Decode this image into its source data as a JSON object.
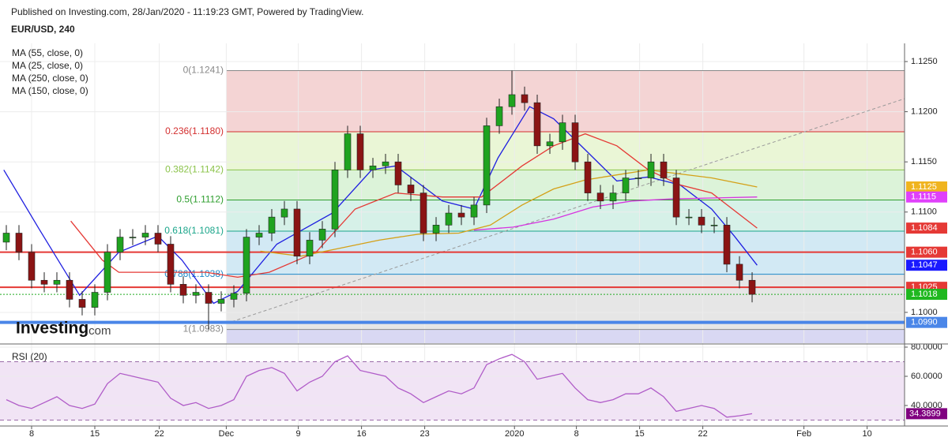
{
  "header": {
    "published": "Published on Investing.com, 28/Jan/2020 - 11:19:23 GMT, Powered by TradingView.",
    "symbol": "EUR/USD, 240",
    "indicators": [
      "MA (55, close, 0)",
      "MA (25, close, 0)",
      "MA (250, close, 0)",
      "MA (150, close, 0)"
    ]
  },
  "logo": {
    "brand": "Investing",
    "suffix": ".com"
  },
  "chart_data": [
    {
      "type": "candlestick",
      "x": [
        0.5,
        1.5,
        2.5,
        3.5,
        4.5,
        5.5,
        6.5,
        7.5,
        8.5,
        9.5,
        10.5,
        11.5,
        12.5,
        13.5,
        14.5,
        15.5,
        16.5,
        17.5,
        18.5,
        19.5,
        20.5,
        21.5,
        22.5,
        23.5,
        24.5,
        25.5,
        26.5,
        27.5,
        28.5,
        29.5,
        30.5,
        31.5,
        32.5,
        33.5,
        34.5,
        35.5,
        36.5,
        37.5,
        38.5,
        39.5,
        40.5,
        41.5,
        42.5,
        43.5,
        44.5,
        45.5,
        46.5,
        47.5,
        48.5,
        49.5,
        50.5,
        51.5,
        52.5,
        53.5,
        54.5,
        55.5,
        56.5,
        57.5,
        58.5,
        59.5
      ],
      "open": [
        1.107,
        1.1079,
        1.106,
        1.1032,
        1.1028,
        1.1032,
        1.1013,
        1.1005,
        1.102,
        1.106,
        1.1075,
        1.1075,
        1.1079,
        1.1068,
        1.1028,
        1.1017,
        1.102,
        1.1009,
        1.1013,
        1.1019,
        1.1075,
        1.1079,
        1.1095,
        1.1103,
        1.1056,
        1.1072,
        1.1083,
        1.1142,
        1.1178,
        1.1142,
        1.1146,
        1.115,
        1.1127,
        1.1119,
        1.1079,
        1.1087,
        1.1099,
        1.1095,
        1.1107,
        1.1186,
        1.1205,
        1.1217,
        1.1209,
        1.1166,
        1.117,
        1.1189,
        1.115,
        1.1119,
        1.1111,
        1.1119,
        1.1134,
        1.1134,
        1.115,
        1.1134,
        1.1095,
        1.1095,
        1.1087,
        1.1087,
        1.1048,
        1.1032
      ],
      "high": [
        1.1087,
        1.1087,
        1.1068,
        1.104,
        1.104,
        1.104,
        1.1021,
        1.1028,
        1.1068,
        1.1083,
        1.1083,
        1.1087,
        1.1087,
        1.1076,
        1.1036,
        1.1028,
        1.1028,
        1.1021,
        1.1027,
        1.1083,
        1.1087,
        1.1103,
        1.1111,
        1.1111,
        1.108,
        1.1091,
        1.115,
        1.1186,
        1.1186,
        1.1154,
        1.1158,
        1.1158,
        1.1135,
        1.1127,
        1.1095,
        1.1107,
        1.1107,
        1.1115,
        1.1194,
        1.1213,
        1.1241,
        1.1225,
        1.1217,
        1.1178,
        1.1197,
        1.1197,
        1.1158,
        1.1127,
        1.1127,
        1.1142,
        1.1142,
        1.1158,
        1.1158,
        1.1142,
        1.1103,
        1.1103,
        1.1095,
        1.1095,
        1.1056,
        1.104
      ],
      "low": [
        1.1062,
        1.1052,
        1.1024,
        1.102,
        1.102,
        1.1005,
        1.0997,
        1.0997,
        1.1012,
        1.1052,
        1.1067,
        1.1067,
        1.106,
        1.102,
        1.1009,
        1.1009,
        1.0983,
        1.1001,
        1.1005,
        1.1011,
        1.1067,
        1.1071,
        1.1087,
        1.1048,
        1.1048,
        1.1064,
        1.1075,
        1.1134,
        1.1134,
        1.1134,
        1.1138,
        1.1119,
        1.1111,
        1.1071,
        1.1071,
        1.1079,
        1.1087,
        1.1087,
        1.1099,
        1.1178,
        1.1197,
        1.1201,
        1.1158,
        1.1158,
        1.1162,
        1.1142,
        1.1111,
        1.1103,
        1.1103,
        1.1111,
        1.1126,
        1.1126,
        1.1126,
        1.1087,
        1.1087,
        1.1079,
        1.1079,
        1.104,
        1.1024,
        1.101
      ],
      "close": [
        1.1079,
        1.106,
        1.1032,
        1.1028,
        1.1032,
        1.1013,
        1.1005,
        1.102,
        1.106,
        1.1075,
        1.1075,
        1.1079,
        1.1068,
        1.1028,
        1.1017,
        1.102,
        1.1009,
        1.1013,
        1.1019,
        1.1075,
        1.1079,
        1.1095,
        1.1103,
        1.1056,
        1.1072,
        1.1083,
        1.1142,
        1.1178,
        1.1142,
        1.1146,
        1.115,
        1.1127,
        1.1119,
        1.1079,
        1.1087,
        1.1099,
        1.1095,
        1.1107,
        1.1186,
        1.1205,
        1.1217,
        1.1209,
        1.1166,
        1.117,
        1.1189,
        1.115,
        1.1119,
        1.1111,
        1.1119,
        1.1134,
        1.1134,
        1.115,
        1.1134,
        1.1095,
        1.1095,
        1.1087,
        1.1087,
        1.1048,
        1.1032,
        1.1018
      ],
      "up_color": "#1fa31f",
      "down_color": "#8b1414",
      "series": [
        {
          "name": "MA (55, close, 0)",
          "color": "#1f1fe0",
          "x": [
            0.3,
            3.1,
            6.3,
            9.4,
            12.5,
            14.4,
            16.9,
            18.8,
            21.9,
            26.3,
            29.4,
            31.3,
            35,
            37.5,
            39.4,
            41.9,
            43.8,
            46.3,
            48.8,
            51.3,
            53.8,
            56.3,
            58.1,
            59.9
          ],
          "values": [
            1.1142,
            1.1083,
            1.1017,
            1.106,
            1.1076,
            1.1052,
            1.1009,
            1.1021,
            1.1068,
            1.1099,
            1.1142,
            1.1146,
            1.1111,
            1.1103,
            1.1154,
            1.1205,
            1.1193,
            1.1162,
            1.1131,
            1.1135,
            1.1127,
            1.1103,
            1.1076,
            1.1047
          ]
        },
        {
          "name": "MA (25, close, 0)",
          "color": "#e53935",
          "x": [
            5.6,
            8.1,
            9.4,
            12.5,
            16.3,
            18.8,
            21.3,
            25,
            28.1,
            31.3,
            35,
            38.1,
            41.3,
            43.8,
            46.3,
            48.8,
            51.3,
            53.8,
            56.3,
            59.9
          ],
          "values": [
            1.1091,
            1.1052,
            1.104,
            1.104,
            1.104,
            1.1035,
            1.104,
            1.106,
            1.1103,
            1.1119,
            1.1115,
            1.1115,
            1.1146,
            1.1166,
            1.1178,
            1.1166,
            1.1142,
            1.1127,
            1.1119,
            1.1084
          ]
        },
        {
          "name": "MA (250, close, 0)",
          "color": "#d4a017",
          "x": [
            20.6,
            23.8,
            26.9,
            30,
            33.1,
            36.3,
            38.8,
            41.3,
            43.8,
            46.3,
            48.8,
            51.3,
            53.8,
            56.3,
            59.9
          ],
          "values": [
            1.1061,
            1.1056,
            1.1064,
            1.1072,
            1.1078,
            1.1079,
            1.1087,
            1.1107,
            1.1123,
            1.1132,
            1.1137,
            1.1142,
            1.1138,
            1.1134,
            1.1125
          ]
        },
        {
          "name": "MA (150, close, 0)",
          "color": "#d633e0",
          "x": [
            37.5,
            40.6,
            43.8,
            46.9,
            50,
            53.1,
            56.3,
            59.9
          ],
          "values": [
            1.1082,
            1.1085,
            1.1093,
            1.1105,
            1.1111,
            1.1113,
            1.1114,
            1.1115
          ]
        }
      ],
      "fib_levels": [
        {
          "label": "0(1.1241)",
          "value": 1.1241,
          "color": "#888888",
          "band": "#f4d4d4"
        },
        {
          "label": "0.236(1.1180)",
          "value": 1.118,
          "color": "#d32f2f",
          "band": "#eaf6d6"
        },
        {
          "label": "0.382(1.1142)",
          "value": 1.1142,
          "color": "#8bc34a",
          "band": "#dcf3d9"
        },
        {
          "label": "0.5(1.1112)",
          "value": 1.1112,
          "color": "#2e9e2e",
          "band": "#d6f1e8"
        },
        {
          "label": "0.618(1.1081)",
          "value": 1.1081,
          "color": "#1aa58a",
          "band": "#d2e9f4"
        },
        {
          "label": "0.786(1.1038)",
          "value": 1.1038,
          "color": "#1e88c8",
          "band": "#e6e6e6"
        },
        {
          "label": "1(1.0983)",
          "value": 1.0983,
          "color": "#888888",
          "band": "#d9d8f3"
        }
      ],
      "levels": [
        {
          "value": 1.106,
          "color": "#e53935",
          "width": 2
        },
        {
          "value": 1.1025,
          "color": "#e53935",
          "width": 2
        },
        {
          "value": 1.099,
          "color": "#4a86e8",
          "width": 4
        },
        {
          "value": 1.1018,
          "color": "#22aa22",
          "width": 1,
          "dotted": true
        }
      ],
      "trendline": [
        1.0989,
        1.1213
      ],
      "price_tags": [
        {
          "value": 1.1125,
          "label": "1.1125",
          "color": "#f0b41e"
        },
        {
          "value": 1.1115,
          "label": "1.1115",
          "color": "#e040fb"
        },
        {
          "value": 1.1084,
          "label": "1.1084",
          "color": "#e53935"
        },
        {
          "value": 1.106,
          "label": "1.1060",
          "color": "#e53935"
        },
        {
          "value": 1.1047,
          "label": "1.1047",
          "color": "#1a1aff"
        },
        {
          "value": 1.1025,
          "label": "1.1025",
          "color": "#e53935"
        },
        {
          "value": 1.1018,
          "label": "1.1018",
          "color": "#1fb81f"
        },
        {
          "value": 1.099,
          "label": "1.0990",
          "color": "#4a86e8"
        }
      ],
      "xlim": [
        0,
        71.56
      ],
      "ylim": [
        1.09693,
        1.12681
      ],
      "yticks": [
        {
          "value": 1.1,
          "label": "1.1000"
        },
        {
          "value": 1.11,
          "label": "1.1100"
        },
        {
          "value": 1.115,
          "label": "1.1150"
        },
        {
          "value": 1.12,
          "label": "1.1200"
        },
        {
          "value": 1.125,
          "label": "1.1250"
        }
      ],
      "xticks": [
        {
          "value": 2.5,
          "label": "8"
        },
        {
          "value": 7.5,
          "label": "15"
        },
        {
          "value": 12.6,
          "label": "22"
        },
        {
          "value": 17.9,
          "label": "Dec"
        },
        {
          "value": 23.6,
          "label": "9"
        },
        {
          "value": 28.6,
          "label": "16"
        },
        {
          "value": 33.6,
          "label": "23"
        },
        {
          "value": 40.7,
          "label": "2020"
        },
        {
          "value": 45.6,
          "label": "8"
        },
        {
          "value": 50.6,
          "label": "15"
        },
        {
          "value": 55.6,
          "label": "22"
        },
        {
          "value": 63.6,
          "label": "Feb"
        },
        {
          "value": 68.6,
          "label": "10"
        }
      ],
      "grid": true
    },
    {
      "type": "line",
      "title": "RSI (20)",
      "color": "#b05cc8",
      "x": [
        0.5,
        1.5,
        2.5,
        3.5,
        4.5,
        5.5,
        6.5,
        7.5,
        8.5,
        9.5,
        10.5,
        11.5,
        12.5,
        13.5,
        14.5,
        15.5,
        16.5,
        17.5,
        18.5,
        19.5,
        20.5,
        21.5,
        22.5,
        23.5,
        24.5,
        25.5,
        26.5,
        27.5,
        28.5,
        29.5,
        30.5,
        31.5,
        32.5,
        33.5,
        34.5,
        35.5,
        36.5,
        37.5,
        38.5,
        39.5,
        40.5,
        41.5,
        42.5,
        43.5,
        44.5,
        45.5,
        46.5,
        47.5,
        48.5,
        49.5,
        50.5,
        51.5,
        52.5,
        53.5,
        54.5,
        55.5,
        56.5,
        57.5,
        58.5,
        59.5
      ],
      "values": [
        44,
        40,
        38,
        42,
        46,
        40,
        38,
        41,
        55,
        62,
        60,
        58,
        56,
        45,
        40,
        42,
        38,
        40,
        44,
        60,
        64,
        66,
        62,
        50,
        56,
        60,
        70,
        74,
        64,
        62,
        60,
        52,
        48,
        42,
        46,
        50,
        48,
        52,
        68,
        72,
        75,
        70,
        58,
        60,
        62,
        52,
        44,
        42,
        44,
        48,
        48,
        52,
        46,
        36,
        38,
        40,
        38,
        32,
        33,
        34.3899
      ],
      "tag_color": "#800080",
      "levels": [
        70,
        30
      ],
      "xlim": [
        0,
        71.56
      ],
      "ylim": [
        25.95,
        82.16
      ],
      "yticks": [
        {
          "value": 40,
          "label": "40.0000"
        },
        {
          "value": 60,
          "label": "60.0000"
        },
        {
          "value": 80,
          "label": "80.0000"
        }
      ],
      "grid": true
    }
  ]
}
